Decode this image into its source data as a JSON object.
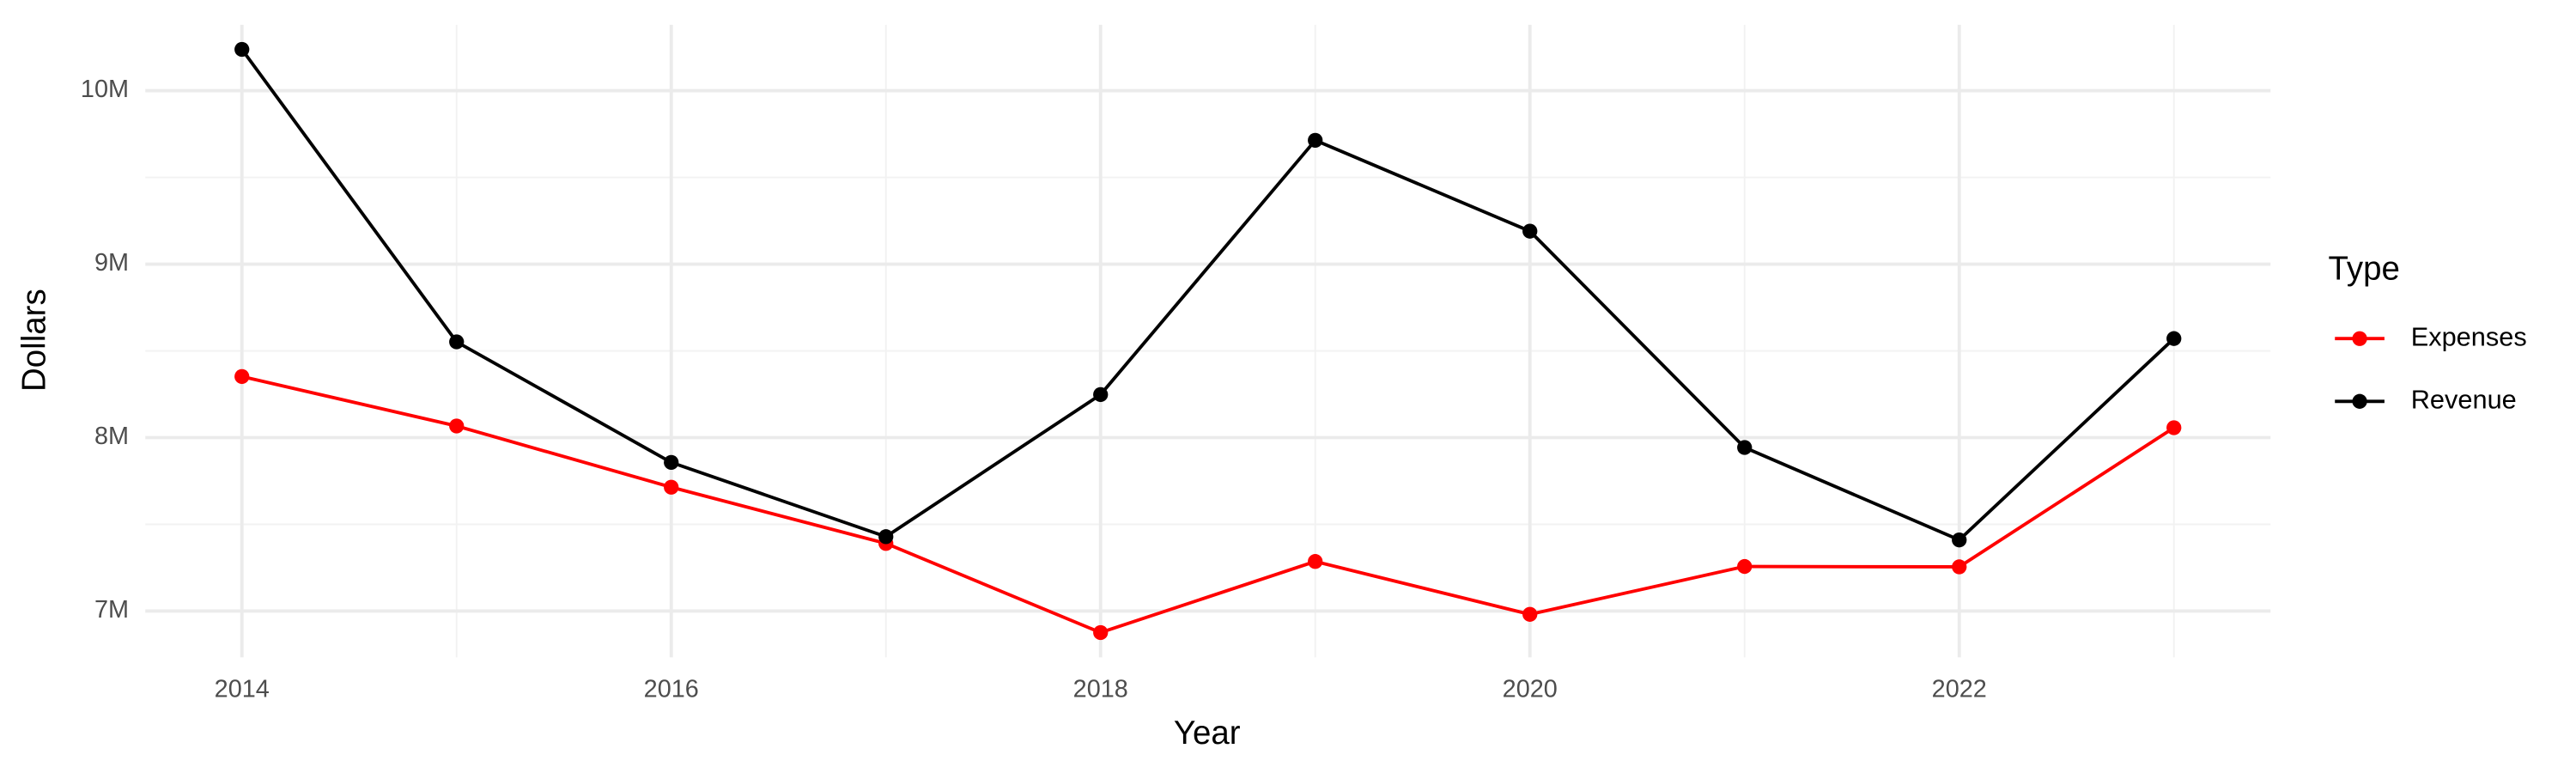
{
  "chart_data": {
    "type": "line",
    "x_label": "Year",
    "y_label": "Dollars",
    "legend_title": "Type",
    "x": [
      2014,
      2015,
      2016,
      2017,
      2018,
      2019,
      2020,
      2021,
      2022,
      2023
    ],
    "series": [
      {
        "name": "Expenses",
        "color": "#ff0000",
        "values": [
          8352000,
          8067000,
          7714000,
          7390000,
          6876000,
          7286000,
          6981000,
          7257000,
          7255000,
          8057000
        ]
      },
      {
        "name": "Revenue",
        "color": "#000000",
        "values": [
          10238000,
          8552000,
          7857000,
          7429000,
          8248000,
          9714000,
          9190000,
          7943000,
          7410000,
          8571000
        ]
      }
    ],
    "xlim": [
      2013.55,
      2023.45
    ],
    "xticks": [
      2014,
      2016,
      2018,
      2020,
      2022
    ],
    "ylim": [
      6733000,
      10380000
    ],
    "yticks": [
      {
        "value": 7000000,
        "label": "7M"
      },
      {
        "value": 8000000,
        "label": "8M"
      },
      {
        "value": 9000000,
        "label": "9M"
      },
      {
        "value": 10000000,
        "label": "10M"
      }
    ],
    "grid": true,
    "legend": "right"
  }
}
